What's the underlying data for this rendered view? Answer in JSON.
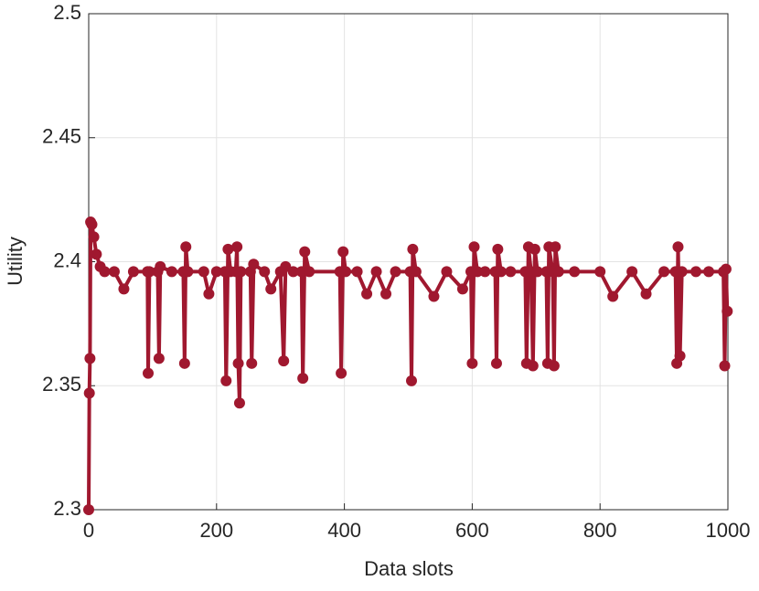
{
  "chart_data": {
    "type": "line",
    "xlabel": "Data slots",
    "ylabel": "Utility",
    "x": [
      0,
      1,
      2,
      3,
      5,
      8,
      12,
      18,
      25,
      40,
      55,
      70,
      92,
      93,
      95,
      108,
      110,
      112,
      130,
      148,
      150,
      152,
      155,
      180,
      188,
      200,
      213,
      215,
      218,
      222,
      230,
      232,
      234,
      236,
      238,
      253,
      255,
      258,
      275,
      285,
      300,
      305,
      308,
      320,
      333,
      335,
      338,
      345,
      393,
      395,
      398,
      402,
      420,
      435,
      450,
      465,
      480,
      503,
      505,
      507,
      512,
      540,
      560,
      585,
      598,
      600,
      603,
      608,
      620,
      636,
      638,
      640,
      645,
      660,
      683,
      685,
      688,
      692,
      695,
      698,
      702,
      716,
      718,
      720,
      726,
      728,
      730,
      735,
      760,
      800,
      820,
      850,
      872,
      900,
      918,
      920,
      922,
      925,
      928,
      950,
      970,
      993,
      995,
      997,
      999
    ],
    "series": [
      {
        "name": "Utility",
        "color": "#a0182f",
        "values": [
          2.3,
          2.347,
          2.361,
          2.416,
          2.415,
          2.41,
          2.403,
          2.398,
          2.396,
          2.396,
          2.389,
          2.396,
          2.396,
          2.355,
          2.396,
          2.396,
          2.361,
          2.398,
          2.396,
          2.396,
          2.359,
          2.406,
          2.396,
          2.396,
          2.387,
          2.396,
          2.396,
          2.352,
          2.405,
          2.396,
          2.396,
          2.406,
          2.359,
          2.343,
          2.396,
          2.396,
          2.359,
          2.399,
          2.396,
          2.389,
          2.396,
          2.36,
          2.398,
          2.396,
          2.396,
          2.353,
          2.404,
          2.396,
          2.396,
          2.355,
          2.404,
          2.396,
          2.396,
          2.387,
          2.396,
          2.387,
          2.396,
          2.396,
          2.352,
          2.405,
          2.396,
          2.386,
          2.396,
          2.389,
          2.396,
          2.359,
          2.406,
          2.396,
          2.396,
          2.396,
          2.359,
          2.405,
          2.396,
          2.396,
          2.396,
          2.359,
          2.406,
          2.396,
          2.358,
          2.405,
          2.396,
          2.396,
          2.359,
          2.406,
          2.396,
          2.358,
          2.406,
          2.396,
          2.396,
          2.396,
          2.386,
          2.396,
          2.387,
          2.396,
          2.396,
          2.359,
          2.406,
          2.362,
          2.396,
          2.396,
          2.396,
          2.396,
          2.358,
          2.397,
          2.38
        ]
      }
    ],
    "xlim": [
      0,
      1000
    ],
    "xticks": [
      0,
      200,
      400,
      600,
      800,
      1000
    ],
    "ylim": [
      2.3,
      2.5
    ],
    "yticks": [
      2.3,
      2.35,
      2.4,
      2.45,
      2.5
    ],
    "grid": true
  }
}
